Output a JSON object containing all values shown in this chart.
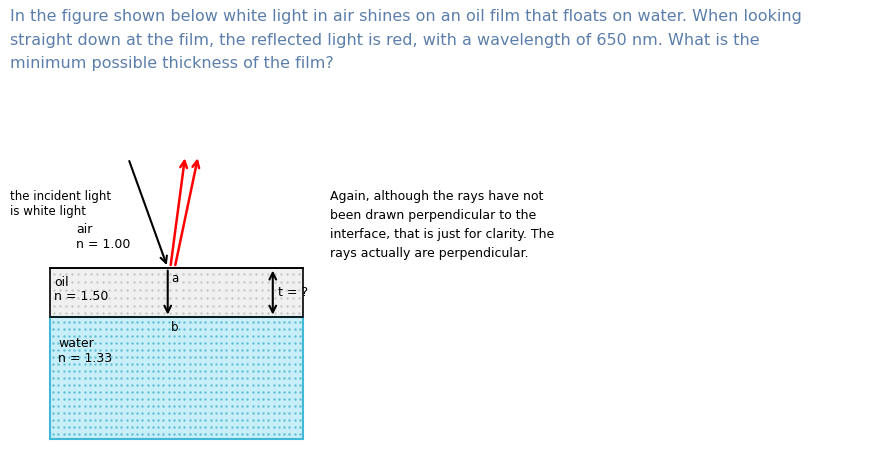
{
  "title_text": "In the figure shown below white light in air shines on an oil film that floats on water. When looking\nstraight down at the film, the reflected light is red, with a wavelength of 650 nm. What is the\nminimum possible thickness of the film?",
  "title_color": "#5b7faa",
  "title_fontsize": 11.5,
  "bg_color": "#ffffff",
  "note_text": "Again, although the rays have not\nbeen drawn perpendicular to the\ninterface, that is just for clarity. The\nrays actually are perpendicular.",
  "air_label": "air",
  "air_n": "n = 1.00",
  "oil_label": "oil",
  "oil_n": "n = 1.50",
  "water_label": "water",
  "water_n": "n = 1.33",
  "incident_label": "the incident light\nis white light",
  "t_label": "t = ?",
  "point_a": "a",
  "point_b": "b",
  "oil_dot_color": "#c8c8c8",
  "water_dot_color": "#60c0d8",
  "water_bg_color": "#c8eef8",
  "oil_bg_color": "#f0f0f0"
}
